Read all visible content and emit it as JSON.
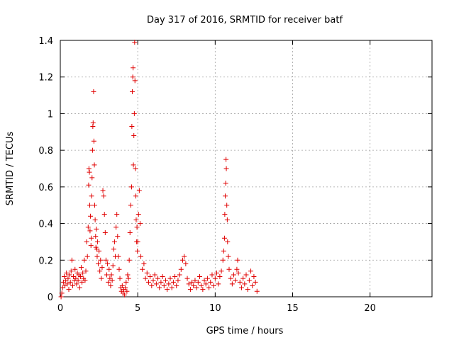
{
  "chart_data": {
    "type": "scatter",
    "title": "Day 317 of 2016, SRMTID for receiver batf",
    "xlabel": "GPS time / hours",
    "ylabel": "SRMTID / TECUs",
    "xlim": [
      0,
      24
    ],
    "ylim": [
      0,
      1.4
    ],
    "xticks": [
      0,
      5,
      10,
      15,
      20
    ],
    "xtick_labels": [
      "0",
      "5",
      "10",
      "15",
      "20"
    ],
    "yticks": [
      0,
      0.2,
      0.4,
      0.6,
      0.8,
      1,
      1.2,
      1.4
    ],
    "ytick_labels": [
      "0",
      "0.2",
      "0.4",
      "0.6",
      "0.8",
      "1",
      "1.2",
      "1.4"
    ],
    "grid": true,
    "marker": "+",
    "color": "#e00000",
    "series": [
      {
        "name": "SRMTID",
        "points": [
          [
            0.05,
            0.0
          ],
          [
            0.1,
            0.02
          ],
          [
            0.15,
            0.05
          ],
          [
            0.2,
            0.08
          ],
          [
            0.25,
            0.11
          ],
          [
            0.3,
            0.06
          ],
          [
            0.35,
            0.09
          ],
          [
            0.4,
            0.13
          ],
          [
            0.45,
            0.07
          ],
          [
            0.5,
            0.1
          ],
          [
            0.55,
            0.04
          ],
          [
            0.6,
            0.12
          ],
          [
            0.65,
            0.08
          ],
          [
            0.7,
            0.14
          ],
          [
            0.75,
            0.2
          ],
          [
            0.8,
            0.06
          ],
          [
            0.85,
            0.11
          ],
          [
            0.9,
            0.09
          ],
          [
            0.95,
            0.15
          ],
          [
            1.0,
            0.1
          ],
          [
            1.05,
            0.07
          ],
          [
            1.1,
            0.13
          ],
          [
            1.15,
            0.09
          ],
          [
            1.2,
            0.12
          ],
          [
            1.25,
            0.05
          ],
          [
            1.3,
            0.11
          ],
          [
            1.35,
            0.16
          ],
          [
            1.4,
            0.08
          ],
          [
            1.45,
            0.13
          ],
          [
            1.5,
            0.1
          ],
          [
            1.55,
            0.2
          ],
          [
            1.6,
            0.09
          ],
          [
            1.65,
            0.14
          ],
          [
            1.7,
            0.3
          ],
          [
            1.75,
            0.22
          ],
          [
            1.8,
            0.38
          ],
          [
            1.83,
            0.61
          ],
          [
            1.85,
            0.7
          ],
          [
            1.88,
            0.68
          ],
          [
            1.9,
            0.5
          ],
          [
            1.92,
            0.36
          ],
          [
            1.95,
            0.44
          ],
          [
            1.98,
            0.28
          ],
          [
            2.0,
            0.32
          ],
          [
            2.02,
            0.55
          ],
          [
            2.05,
            0.65
          ],
          [
            2.08,
            0.8
          ],
          [
            2.1,
            0.93
          ],
          [
            2.12,
            0.95
          ],
          [
            2.15,
            1.12
          ],
          [
            2.17,
            0.85
          ],
          [
            2.2,
            0.72
          ],
          [
            2.22,
            0.5
          ],
          [
            2.25,
            0.42
          ],
          [
            2.28,
            0.33
          ],
          [
            2.3,
            0.27
          ],
          [
            2.33,
            0.37
          ],
          [
            2.35,
            0.26
          ],
          [
            2.38,
            0.22
          ],
          [
            2.4,
            0.3
          ],
          [
            2.45,
            0.18
          ],
          [
            2.5,
            0.25
          ],
          [
            2.55,
            0.14
          ],
          [
            2.6,
            0.2
          ],
          [
            2.65,
            0.1
          ],
          [
            2.7,
            0.16
          ],
          [
            2.75,
            0.58
          ],
          [
            2.8,
            0.55
          ],
          [
            2.85,
            0.45
          ],
          [
            2.9,
            0.35
          ],
          [
            2.95,
            0.2
          ],
          [
            3.0,
            0.12
          ],
          [
            3.05,
            0.18
          ],
          [
            3.1,
            0.08
          ],
          [
            3.15,
            0.15
          ],
          [
            3.2,
            0.1
          ],
          [
            3.25,
            0.06
          ],
          [
            3.3,
            0.12
          ],
          [
            3.35,
            0.09
          ],
          [
            3.4,
            0.17
          ],
          [
            3.45,
            0.26
          ],
          [
            3.5,
            0.3
          ],
          [
            3.55,
            0.22
          ],
          [
            3.6,
            0.38
          ],
          [
            3.65,
            0.45
          ],
          [
            3.7,
            0.33
          ],
          [
            3.75,
            0.22
          ],
          [
            3.8,
            0.15
          ],
          [
            3.85,
            0.1
          ],
          [
            3.9,
            0.05
          ],
          [
            3.95,
            0.03
          ],
          [
            4.0,
            0.06
          ],
          [
            4.05,
            0.02
          ],
          [
            4.1,
            0.04
          ],
          [
            4.15,
            0.01
          ],
          [
            4.2,
            0.05
          ],
          [
            4.25,
            0.08
          ],
          [
            4.3,
            0.03
          ],
          [
            4.35,
            0.12
          ],
          [
            4.4,
            0.1
          ],
          [
            4.45,
            0.2
          ],
          [
            4.5,
            0.35
          ],
          [
            4.55,
            0.5
          ],
          [
            4.6,
            0.6
          ],
          [
            4.62,
            0.93
          ],
          [
            4.65,
            1.12
          ],
          [
            4.68,
            1.2
          ],
          [
            4.7,
            1.25
          ],
          [
            4.72,
            0.72
          ],
          [
            4.75,
            0.88
          ],
          [
            4.78,
            1.0
          ],
          [
            4.8,
            1.39
          ],
          [
            4.82,
            1.18
          ],
          [
            4.85,
            0.7
          ],
          [
            4.88,
            0.55
          ],
          [
            4.9,
            0.42
          ],
          [
            4.93,
            0.3
          ],
          [
            4.95,
            0.38
          ],
          [
            4.98,
            0.25
          ],
          [
            5.0,
            0.3
          ],
          [
            5.05,
            0.45
          ],
          [
            5.1,
            0.58
          ],
          [
            5.15,
            0.4
          ],
          [
            5.2,
            0.22
          ],
          [
            5.3,
            0.15
          ],
          [
            5.4,
            0.18
          ],
          [
            5.5,
            0.1
          ],
          [
            5.6,
            0.13
          ],
          [
            5.7,
            0.08
          ],
          [
            5.8,
            0.11
          ],
          [
            5.9,
            0.06
          ],
          [
            6.0,
            0.09
          ],
          [
            6.1,
            0.12
          ],
          [
            6.2,
            0.07
          ],
          [
            6.3,
            0.1
          ],
          [
            6.4,
            0.05
          ],
          [
            6.5,
            0.08
          ],
          [
            6.6,
            0.11
          ],
          [
            6.7,
            0.06
          ],
          [
            6.8,
            0.09
          ],
          [
            6.9,
            0.04
          ],
          [
            7.0,
            0.07
          ],
          [
            7.1,
            0.1
          ],
          [
            7.2,
            0.05
          ],
          [
            7.3,
            0.08
          ],
          [
            7.4,
            0.11
          ],
          [
            7.5,
            0.06
          ],
          [
            7.6,
            0.09
          ],
          [
            7.7,
            0.12
          ],
          [
            7.8,
            0.15
          ],
          [
            7.9,
            0.2
          ],
          [
            8.0,
            0.22
          ],
          [
            8.1,
            0.18
          ],
          [
            8.2,
            0.1
          ],
          [
            8.3,
            0.07
          ],
          [
            8.4,
            0.04
          ],
          [
            8.5,
            0.08
          ],
          [
            8.6,
            0.06
          ],
          [
            8.7,
            0.09
          ],
          [
            8.8,
            0.05
          ],
          [
            8.9,
            0.08
          ],
          [
            9.0,
            0.11
          ],
          [
            9.1,
            0.06
          ],
          [
            9.2,
            0.04
          ],
          [
            9.3,
            0.09
          ],
          [
            9.4,
            0.07
          ],
          [
            9.5,
            0.1
          ],
          [
            9.6,
            0.05
          ],
          [
            9.7,
            0.08
          ],
          [
            9.8,
            0.12
          ],
          [
            9.9,
            0.06
          ],
          [
            10.0,
            0.1
          ],
          [
            10.1,
            0.13
          ],
          [
            10.2,
            0.07
          ],
          [
            10.3,
            0.11
          ],
          [
            10.4,
            0.14
          ],
          [
            10.5,
            0.2
          ],
          [
            10.55,
            0.25
          ],
          [
            10.6,
            0.32
          ],
          [
            10.62,
            0.45
          ],
          [
            10.65,
            0.55
          ],
          [
            10.68,
            0.62
          ],
          [
            10.7,
            0.75
          ],
          [
            10.72,
            0.7
          ],
          [
            10.75,
            0.5
          ],
          [
            10.78,
            0.42
          ],
          [
            10.8,
            0.3
          ],
          [
            10.85,
            0.22
          ],
          [
            10.9,
            0.15
          ],
          [
            11.0,
            0.1
          ],
          [
            11.1,
            0.07
          ],
          [
            11.2,
            0.12
          ],
          [
            11.3,
            0.09
          ],
          [
            11.4,
            0.15
          ],
          [
            11.45,
            0.2
          ],
          [
            11.5,
            0.13
          ],
          [
            11.6,
            0.08
          ],
          [
            11.7,
            0.05
          ],
          [
            11.8,
            0.1
          ],
          [
            11.9,
            0.07
          ],
          [
            12.0,
            0.12
          ],
          [
            12.1,
            0.04
          ],
          [
            12.2,
            0.09
          ],
          [
            12.3,
            0.14
          ],
          [
            12.4,
            0.06
          ],
          [
            12.5,
            0.11
          ],
          [
            12.6,
            0.08
          ],
          [
            12.7,
            0.03
          ]
        ]
      }
    ]
  }
}
